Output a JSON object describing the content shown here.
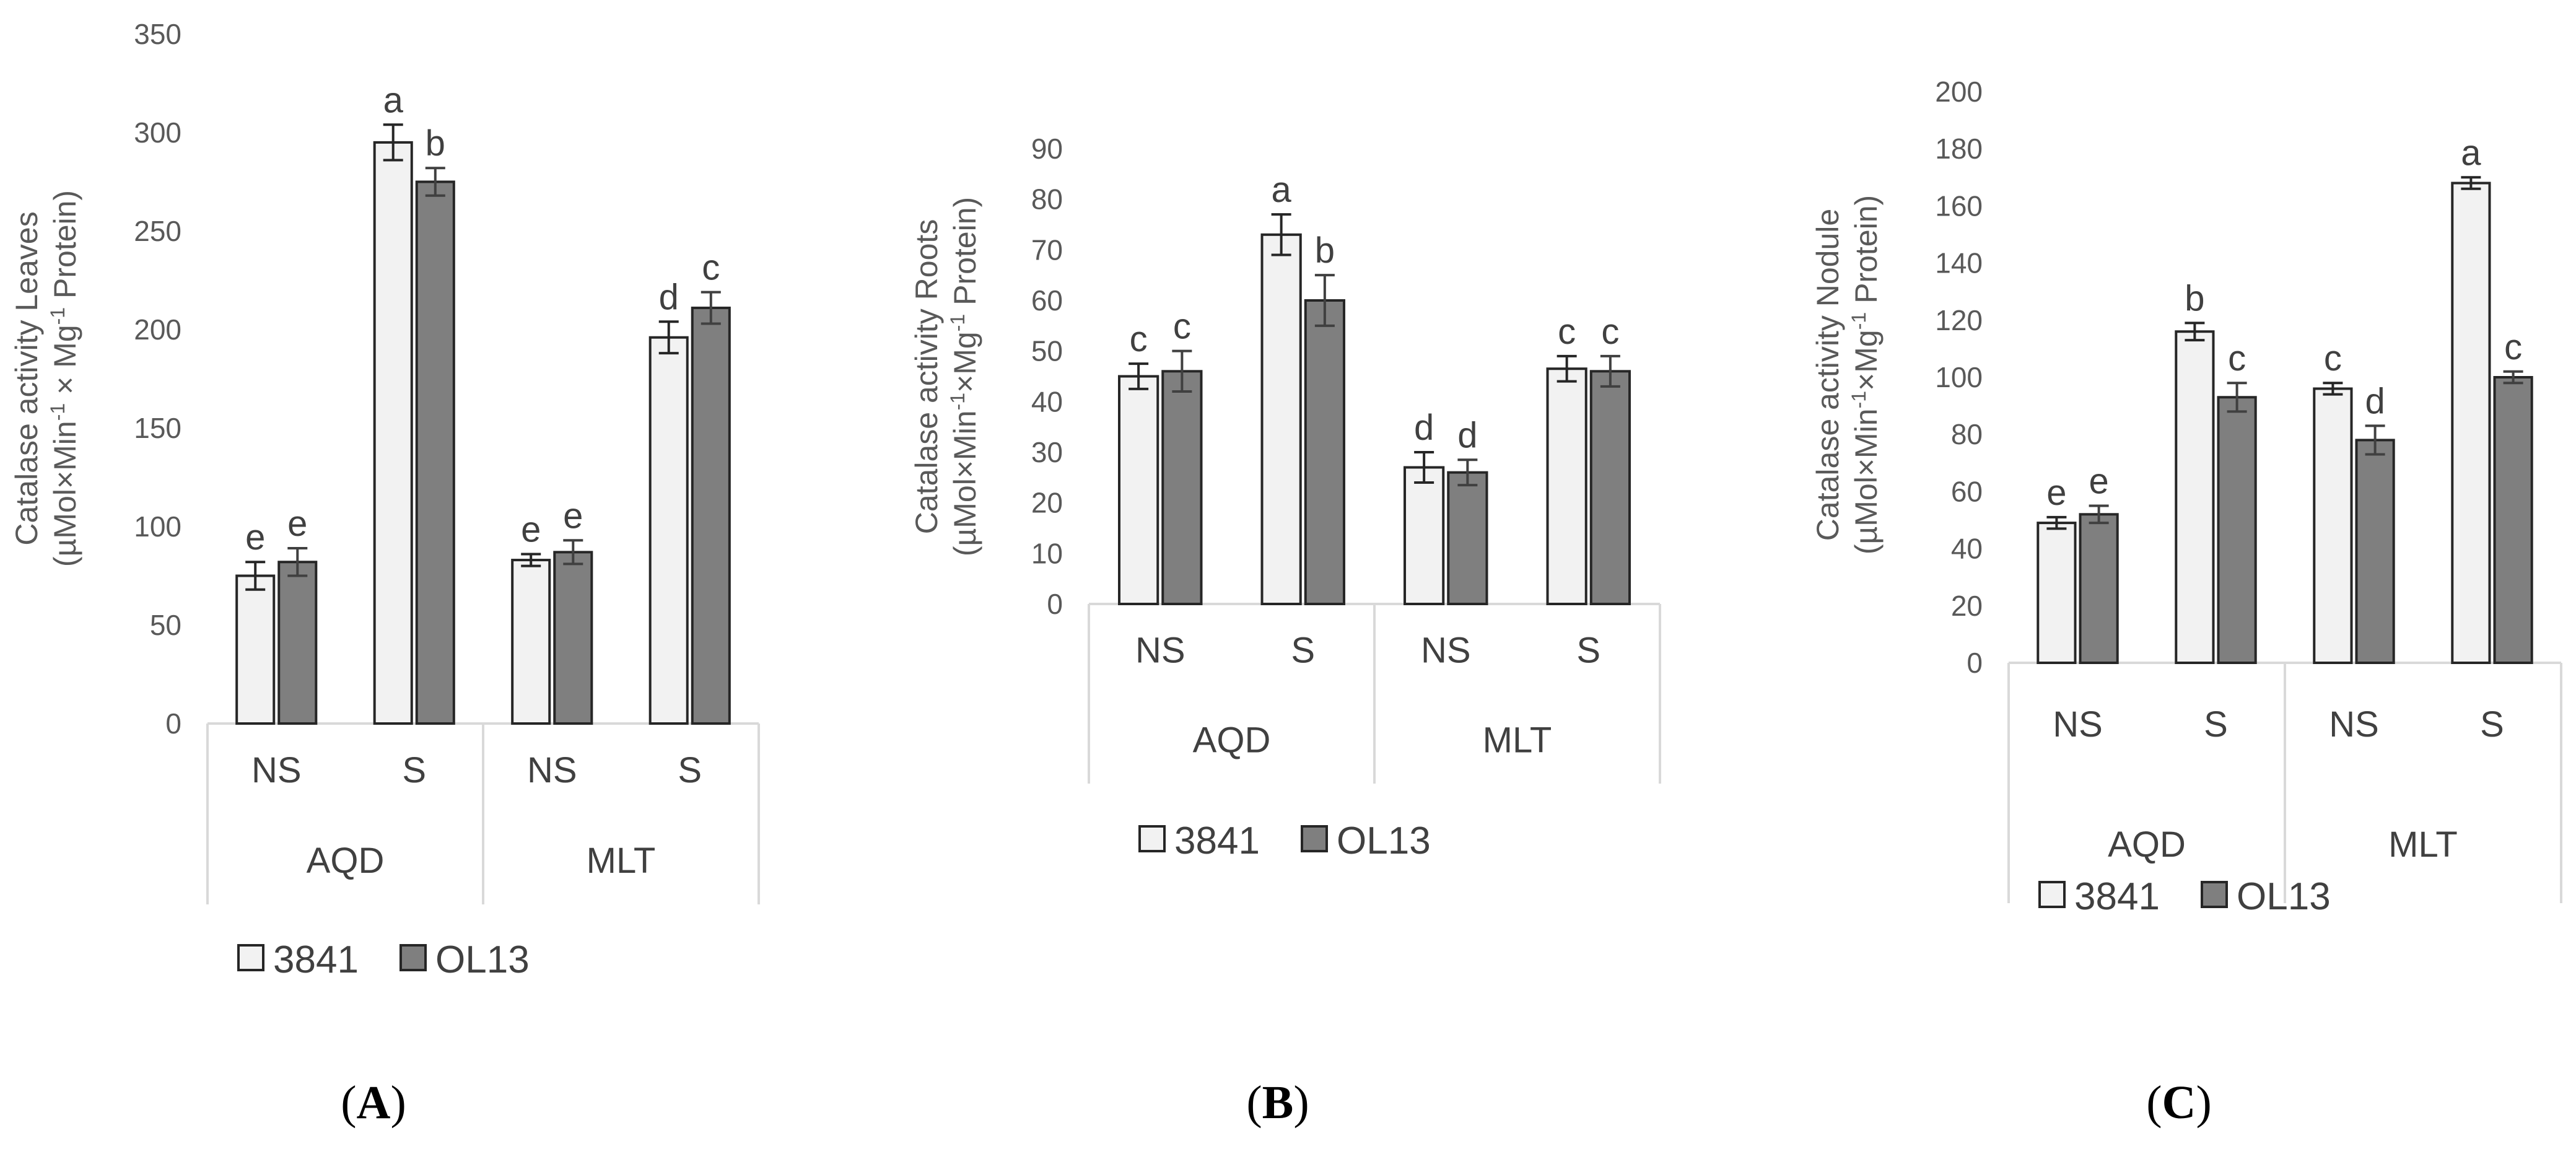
{
  "colors": {
    "series1": "#f2f2f2",
    "series2": "#7f7f7f",
    "axis": "#d9d9d9",
    "outline": "#262626",
    "text": "#404040"
  },
  "legend": [
    {
      "name": "3841"
    },
    {
      "name": "OL13"
    }
  ],
  "chart_data": [
    {
      "panel": "A",
      "panel_label_open": "(",
      "panel_label_letter": "A",
      "panel_label_close": ")",
      "type": "bar",
      "ylabel_line1": "Catalase activity Leaves",
      "ylabel_line2": {
        "p1": "(µMol×Min",
        "s1": "-1",
        "p2": " × Mg",
        "s2": "-1",
        "p3": " Protein)"
      },
      "ylim": [
        0,
        350
      ],
      "ystep": 50,
      "groups": [
        {
          "label": "AQD",
          "sub": [
            "NS",
            "S"
          ]
        },
        {
          "label": "MLT",
          "sub": [
            "NS",
            "S"
          ]
        }
      ],
      "series": [
        {
          "name": "3841",
          "values": [
            75,
            295,
            83,
            196
          ],
          "errors": [
            7,
            9,
            3,
            8
          ],
          "letters": [
            "e",
            "a",
            "e",
            "d"
          ]
        },
        {
          "name": "OL13",
          "values": [
            82,
            275,
            87,
            211
          ],
          "errors": [
            7,
            7,
            6,
            8
          ],
          "letters": [
            "e",
            "b",
            "e",
            "c"
          ]
        }
      ]
    },
    {
      "panel": "B",
      "panel_label_open": "(",
      "panel_label_letter": "B",
      "panel_label_close": ")",
      "type": "bar",
      "ylabel_line1": "Catalase activity Roots",
      "ylabel_line2": {
        "p1": "(µMol×Min",
        "s1": "-1",
        "p2": "×Mg",
        "s2": "-1",
        "p3": " Protein)"
      },
      "ylim": [
        0,
        90
      ],
      "ystep": 10,
      "groups": [
        {
          "label": "AQD",
          "sub": [
            "NS",
            "S"
          ]
        },
        {
          "label": "MLT",
          "sub": [
            "NS",
            "S"
          ]
        }
      ],
      "series": [
        {
          "name": "3841",
          "values": [
            45,
            73,
            27,
            46.5
          ],
          "errors": [
            2.5,
            4,
            3,
            2.5
          ],
          "letters": [
            "c",
            "a",
            "d",
            "c"
          ]
        },
        {
          "name": "OL13",
          "values": [
            46,
            60,
            26,
            46
          ],
          "errors": [
            4,
            5,
            2.5,
            3
          ],
          "letters": [
            "c",
            "b",
            "d",
            "c"
          ]
        }
      ]
    },
    {
      "panel": "C",
      "panel_label_open": "(",
      "panel_label_letter": "C",
      "panel_label_close": ")",
      "type": "bar",
      "ylabel_line1": "Catalase activity Nodule",
      "ylabel_line2": {
        "p1": "(µMol×Min",
        "s1": "-1",
        "p2": "×Mg",
        "s2": "-1",
        "p3": " Protein)"
      },
      "ylim": [
        0,
        200
      ],
      "ystep": 20,
      "groups": [
        {
          "label": "AQD",
          "sub": [
            "NS",
            "S"
          ]
        },
        {
          "label": "MLT",
          "sub": [
            "NS",
            "S"
          ]
        }
      ],
      "series": [
        {
          "name": "3841",
          "values": [
            49,
            116,
            96,
            168
          ],
          "errors": [
            2,
            3,
            2,
            2
          ],
          "letters": [
            "e",
            "b",
            "c",
            "a"
          ]
        },
        {
          "name": "OL13",
          "values": [
            52,
            93,
            78,
            100
          ],
          "errors": [
            3,
            5,
            5,
            2
          ],
          "letters": [
            "e",
            "c",
            "d",
            "c"
          ]
        }
      ]
    }
  ]
}
